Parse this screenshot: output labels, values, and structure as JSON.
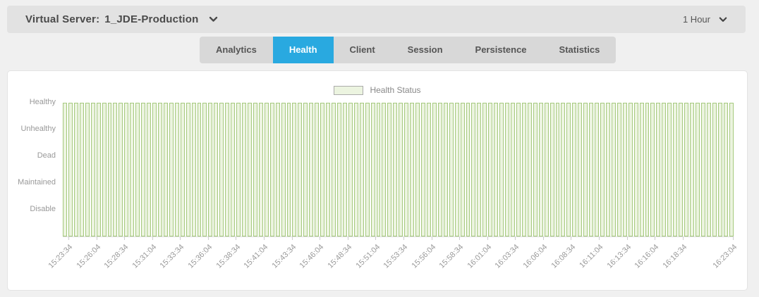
{
  "colors": {
    "accent": "#29a9e0",
    "bar_fill": "#ecf4e0",
    "bar_border": "#a5c97d"
  },
  "header": {
    "label": "Virtual Server:",
    "value": "1_JDE-Production",
    "time_range": "1 Hour"
  },
  "tabs": [
    {
      "label": "Analytics",
      "active": false
    },
    {
      "label": "Health",
      "active": true
    },
    {
      "label": "Client",
      "active": false
    },
    {
      "label": "Session",
      "active": false
    },
    {
      "label": "Persistence",
      "active": false
    },
    {
      "label": "Statistics",
      "active": false
    }
  ],
  "chart_data": {
    "type": "bar",
    "title": "",
    "legend": "Health Status",
    "legend_position": "top-center",
    "y_categories": [
      "Healthy",
      "Unhealthy",
      "Dead",
      "Maintained",
      "Disable"
    ],
    "bars": {
      "count": 120,
      "value": "Healthy",
      "interval_seconds": 30
    },
    "x_ticks": [
      {
        "label": "15:23:34",
        "pos": 0.0083
      },
      {
        "label": "15:26:04",
        "pos": 0.05
      },
      {
        "label": "15:28:34",
        "pos": 0.0917
      },
      {
        "label": "15:31:04",
        "pos": 0.1333
      },
      {
        "label": "15:33:34",
        "pos": 0.175
      },
      {
        "label": "15:36:04",
        "pos": 0.2167
      },
      {
        "label": "15:38:34",
        "pos": 0.2583
      },
      {
        "label": "15:41:04",
        "pos": 0.3
      },
      {
        "label": "15:43:34",
        "pos": 0.3417
      },
      {
        "label": "15:46:04",
        "pos": 0.3833
      },
      {
        "label": "15:48:34",
        "pos": 0.425
      },
      {
        "label": "15:51:04",
        "pos": 0.4667
      },
      {
        "label": "15:53:34",
        "pos": 0.5083
      },
      {
        "label": "15:56:04",
        "pos": 0.55
      },
      {
        "label": "15:58:34",
        "pos": 0.5917
      },
      {
        "label": "16:01:04",
        "pos": 0.6333
      },
      {
        "label": "16:03:34",
        "pos": 0.675
      },
      {
        "label": "16:06:04",
        "pos": 0.7167
      },
      {
        "label": "16:08:34",
        "pos": 0.7583
      },
      {
        "label": "16:11:04",
        "pos": 0.8
      },
      {
        "label": "16:13:34",
        "pos": 0.8417
      },
      {
        "label": "16:16:04",
        "pos": 0.8833
      },
      {
        "label": "16:18:34",
        "pos": 0.925
      },
      {
        "label": "16:23:04",
        "pos": 1.0
      }
    ],
    "grid": false
  }
}
